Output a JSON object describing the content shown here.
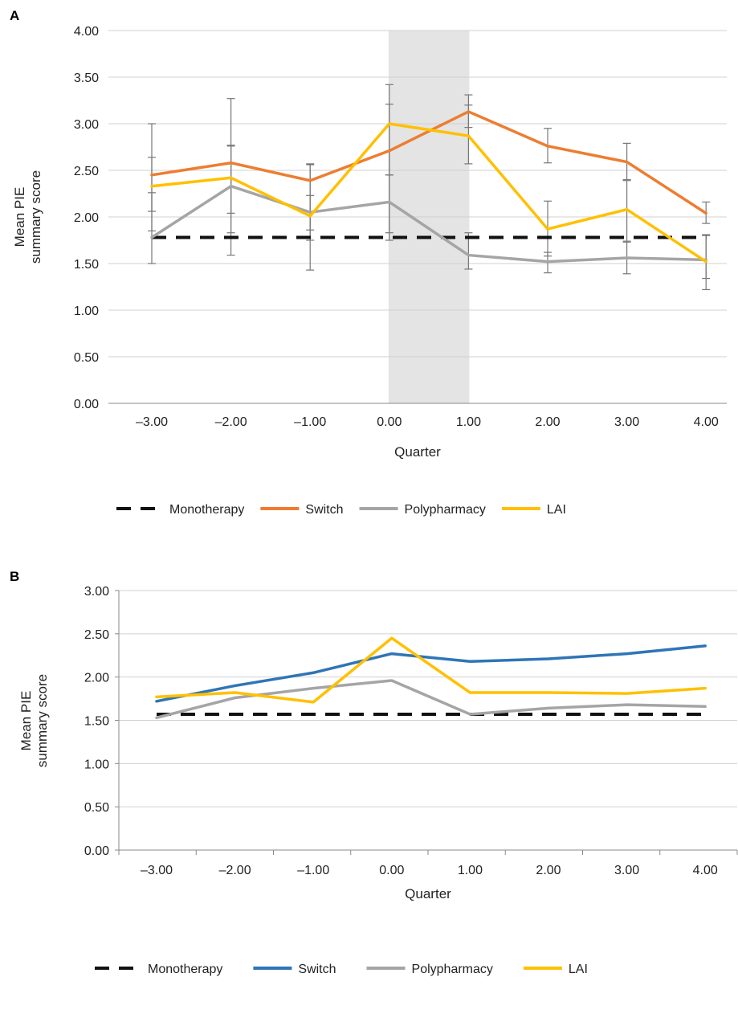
{
  "chart_data": [
    {
      "panel": "A",
      "type": "line",
      "xlabel": "Quarter",
      "ylabel_lines": [
        "Mean PIE",
        "summary score"
      ],
      "x": [
        -3,
        -2,
        -1,
        0,
        1,
        2,
        3,
        4
      ],
      "x_tick_labels": [
        "–3.00",
        "–2.00",
        "–1.00",
        "0.00",
        "1.00",
        "2.00",
        "3.00",
        "4.00"
      ],
      "ylim": [
        0,
        4
      ],
      "y_ticks": [
        0,
        0.5,
        1,
        1.5,
        2,
        2.5,
        3,
        3.5,
        4
      ],
      "y_tick_labels": [
        "0.00",
        "0.50",
        "1.00",
        "1.50",
        "2.00",
        "2.50",
        "3.00",
        "3.50",
        "4.00"
      ],
      "grid": true,
      "shaded_region": [
        0,
        1
      ],
      "legend_position": "bottom",
      "series": [
        {
          "name": "Monotherapy",
          "color": "#111111",
          "dashed": true,
          "values": [
            1.78,
            1.78,
            1.78,
            1.78,
            1.78,
            1.78,
            1.78,
            1.78
          ]
        },
        {
          "name": "Switch",
          "color": "#ED7D31",
          "dashed": false,
          "values": [
            2.45,
            2.58,
            2.39,
            2.71,
            3.13,
            2.76,
            2.59,
            2.04
          ],
          "error_low": [
            2.06,
            2.04,
            1.86,
            2.45,
            2.96,
            2.58,
            2.4,
            1.93
          ],
          "error_high": [
            2.64,
            3.27,
            2.57,
            3.42,
            3.31,
            2.95,
            2.79,
            2.16
          ]
        },
        {
          "name": "Polypharmacy",
          "color": "#A5A5A5",
          "dashed": false,
          "values": [
            1.78,
            2.33,
            2.05,
            2.16,
            1.59,
            1.52,
            1.56,
            1.54
          ],
          "error_low": [
            1.5,
            1.83,
            1.43,
            1.83,
            1.44,
            1.4,
            1.39,
            1.22
          ],
          "error_high": [
            2.26,
            2.77,
            2.56,
            2.45,
            1.83,
            1.62,
            1.73,
            1.81
          ]
        },
        {
          "name": "LAI",
          "color": "#FFC000",
          "dashed": false,
          "values": [
            2.33,
            2.42,
            2.01,
            3.0,
            2.87,
            1.87,
            2.08,
            1.52
          ],
          "error_low": [
            1.85,
            1.59,
            1.75,
            1.75,
            2.57,
            1.58,
            1.74,
            1.34
          ],
          "error_high": [
            3.0,
            2.76,
            2.23,
            3.21,
            3.2,
            2.17,
            2.39,
            1.8
          ]
        }
      ]
    },
    {
      "panel": "B",
      "type": "line",
      "xlabel": "Quarter",
      "ylabel_lines": [
        "Mean PIE",
        "summary score"
      ],
      "x": [
        -3,
        -2,
        -1,
        0,
        1,
        2,
        3,
        4
      ],
      "x_tick_labels": [
        "–3.00",
        "–2.00",
        "–1.00",
        "0.00",
        "1.00",
        "2.00",
        "3.00",
        "4.00"
      ],
      "ylim": [
        0,
        3
      ],
      "y_ticks": [
        0,
        0.5,
        1,
        1.5,
        2,
        2.5,
        3
      ],
      "y_tick_labels": [
        "0.00",
        "0.50",
        "1.00",
        "1.50",
        "2.00",
        "2.50",
        "3.00"
      ],
      "grid": true,
      "legend_position": "bottom",
      "series": [
        {
          "name": "Monotherapy",
          "color": "#111111",
          "dashed": true,
          "values": [
            1.57,
            1.57,
            1.57,
            1.57,
            1.57,
            1.57,
            1.57,
            1.57
          ]
        },
        {
          "name": "Switch",
          "color": "#2E75B6",
          "dashed": false,
          "values": [
            1.72,
            1.9,
            2.05,
            2.27,
            2.18,
            2.21,
            2.27,
            2.36
          ]
        },
        {
          "name": "Polypharmacy",
          "color": "#A5A5A5",
          "dashed": false,
          "values": [
            1.53,
            1.76,
            1.87,
            1.96,
            1.57,
            1.64,
            1.68,
            1.66
          ]
        },
        {
          "name": "LAI",
          "color": "#FFC000",
          "dashed": false,
          "values": [
            1.77,
            1.82,
            1.71,
            2.45,
            1.82,
            1.82,
            1.81,
            1.87
          ]
        }
      ]
    }
  ]
}
